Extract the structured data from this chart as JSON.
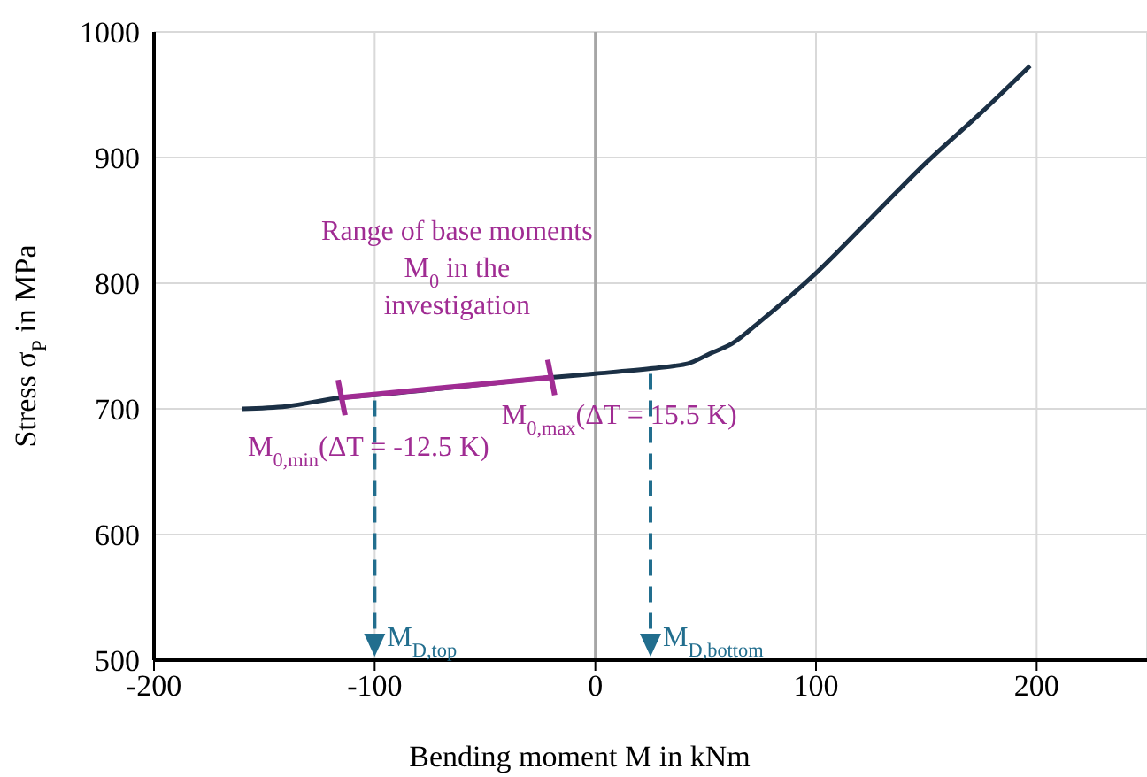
{
  "chart_data": {
    "type": "line",
    "xlabel": "Bending moment M in kNm",
    "ylabel": "Stress σ$_{P}$ in MPa",
    "xlim": [
      -200,
      250
    ],
    "xticks": [
      -200,
      -100,
      0,
      100,
      200
    ],
    "ylim": [
      500,
      1000
    ],
    "yticks": [
      500,
      600,
      700,
      800,
      900,
      1000
    ],
    "grid": true,
    "ref_lines": [
      {
        "axis": "x",
        "value": 0,
        "color": "#a6a6a6"
      }
    ],
    "series": [
      {
        "color": "#1b3045",
        "line_style": "solid",
        "x": [
          -160,
          -140,
          -115,
          -100,
          -60,
          -20,
          0,
          25,
          35,
          42,
          52,
          62,
          75,
          100,
          125,
          150,
          175,
          197
        ],
        "values": [
          700,
          702,
          709,
          711,
          718,
          725,
          728,
          732,
          734,
          736,
          744,
          752,
          770,
          808,
          852,
          896,
          936,
          973
        ]
      },
      {
        "color": "#a02c93",
        "line_style": "solid",
        "x": [
          -115,
          -20
        ],
        "values": [
          709,
          725
        ]
      }
    ],
    "annotations": [
      "Range of base moments M$_{0}$ in the investigation",
      {
        "text": "M$_{0,min}$(ΔT = -12.5 K)",
        "x": -115,
        "y": 709
      },
      {
        "text": "M$_{0,max}$(ΔT = 15.5 K)",
        "x": -20,
        "y": 725
      },
      {
        "text": "M$_{D,top}$",
        "x": -100,
        "y": 711
      },
      {
        "text": "M$_{D,bottom}$",
        "x": 25,
        "y": 732
      }
    ]
  }
}
